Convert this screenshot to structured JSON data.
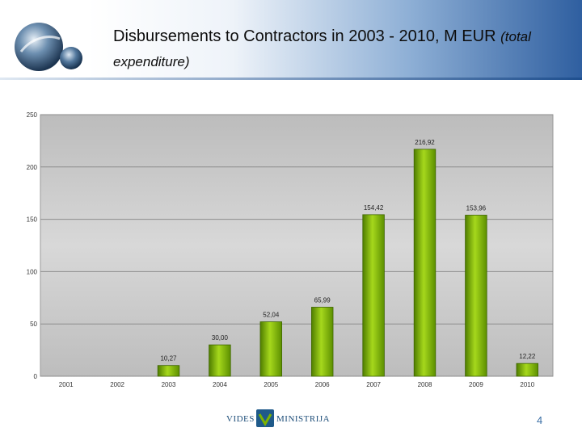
{
  "title": {
    "main": "Disbursements to Contractors in 2003 - 2010, M EUR",
    "sub": "(total expenditure)"
  },
  "footer": {
    "logo_left": "VIDES",
    "logo_right": "MINISTRIJA",
    "page_number": "4"
  },
  "colors": {
    "bar": "#7db300",
    "plot_background": "#c8c8c8",
    "accent": "#2f5fa0"
  },
  "chart_data": {
    "type": "bar",
    "categories": [
      "2001",
      "2002",
      "2003",
      "2004",
      "2005",
      "2006",
      "2007",
      "2008",
      "2009",
      "2010"
    ],
    "values": [
      null,
      null,
      10.27,
      30.0,
      52.04,
      65.99,
      154.42,
      216.92,
      153.96,
      12.22
    ],
    "data_labels": [
      "",
      "",
      "10,27",
      "30,00",
      "52,04",
      "65,99",
      "154,42",
      "216,92",
      "153,96",
      "12,22"
    ],
    "ylim": [
      0,
      250
    ],
    "yticks": [
      0,
      50,
      100,
      150,
      200,
      250
    ],
    "ytick_labels": [
      "0",
      "50",
      "100",
      "150",
      "200",
      "250"
    ],
    "grid": true,
    "legend": "none"
  }
}
